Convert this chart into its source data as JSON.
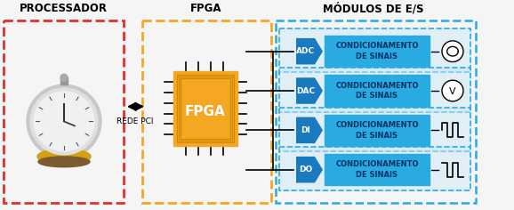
{
  "bg_color": "#f5f5f5",
  "title_processador": "PROCESSADOR",
  "title_fpga": "FPGA",
  "title_modulos": "MÓDULOS DE E/S",
  "rede_pci_label": "REDE PCI",
  "fpga_label": "FPGA",
  "modules": [
    "ADC",
    "DAC",
    "DI",
    "DO"
  ],
  "module_label": "CONDICIONAMENTO\nDE SINAIS",
  "red_dashed_color": "#e03030",
  "orange_dashed_color": "#f5a623",
  "blue_dashed_color": "#29abe2",
  "fpga_chip_color": "#f5a623",
  "module_arrow_color": "#1a7abf",
  "module_box_color": "#29abe2",
  "module_text_color": "#003366",
  "white": "#ffffff",
  "black": "#000000",
  "title_fontsize": 8.5,
  "label_fontsize": 7.5
}
